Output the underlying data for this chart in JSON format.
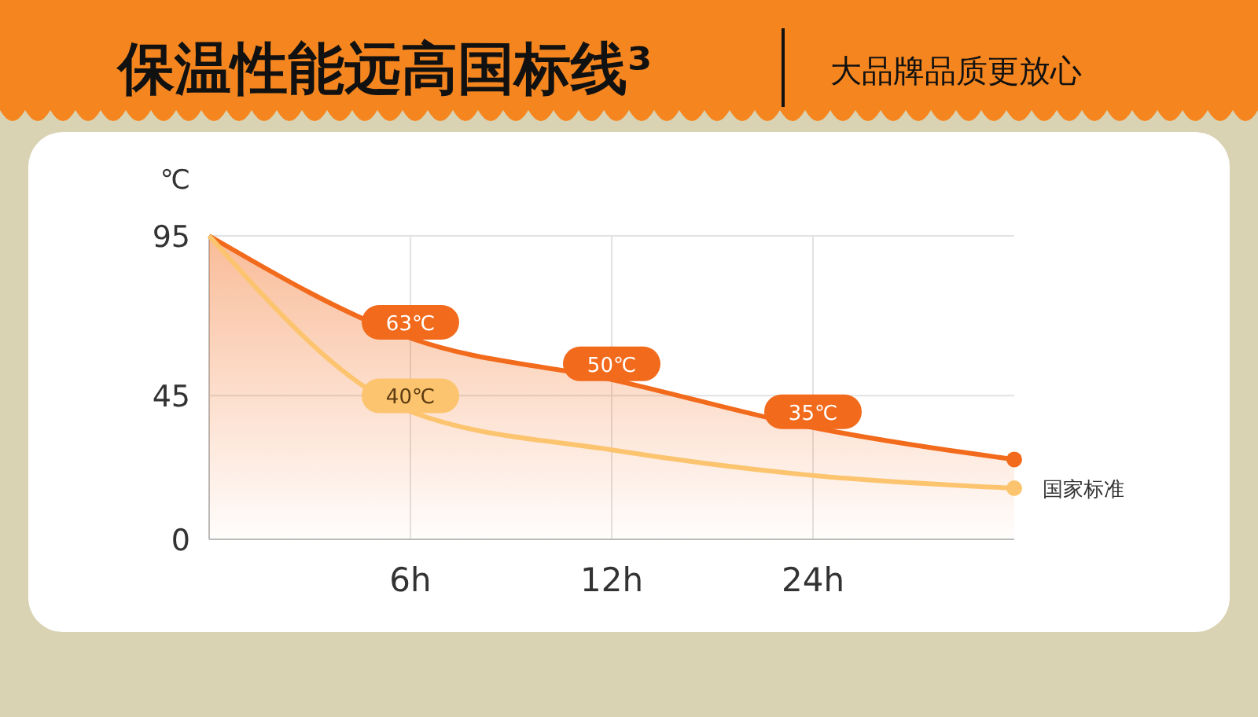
{
  "chart_data": {
    "type": "area",
    "title": "保温性能远高国标线³",
    "subtitle": "大品牌品质更放心",
    "ylabel": "℃",
    "categories": [
      null,
      "6h",
      "12h",
      "24h",
      null
    ],
    "ylim": [
      0,
      95
    ],
    "yticks": [
      0,
      45,
      95
    ],
    "grid": true,
    "marker": "none",
    "series": [
      {
        "color": "#f26a1b",
        "values": [
          95,
          63,
          50,
          35,
          25
        ],
        "value_labels": [
          null,
          "63℃",
          "50℃",
          "35℃",
          null
        ]
      },
      {
        "name": "国家标准",
        "type": "line",
        "color": "#fcc46e",
        "values": [
          95,
          40,
          28,
          20,
          16
        ],
        "value_labels": [
          null,
          "40℃",
          null,
          null,
          null
        ]
      }
    ]
  }
}
